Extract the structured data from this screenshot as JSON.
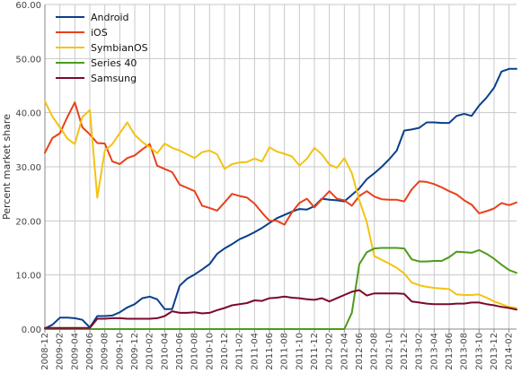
{
  "chart_data": {
    "type": "line",
    "title": "",
    "xlabel": "",
    "ylabel": "Percent market share",
    "ylim": [
      0,
      60
    ],
    "yticks": [
      "0.00",
      "10.00",
      "20.00",
      "30.00",
      "40.00",
      "50.00",
      "60.00"
    ],
    "grid": true,
    "legend_position": "top-left",
    "x_tick_labels": [
      "2008-12",
      "2009-02",
      "2009-04",
      "2009-06",
      "2009-08",
      "2009-10",
      "2009-12",
      "2010-02",
      "2010-04",
      "2010-06",
      "2010-08",
      "2010-10",
      "2010-12",
      "2011-02",
      "2011-04",
      "2011-06",
      "2011-08",
      "2011-10",
      "2011-12",
      "2012-02",
      "2012-04",
      "2012-06",
      "2012-08",
      "2012-10",
      "2012-12",
      "2013-02",
      "2013-04",
      "2013-06",
      "2013-08",
      "2013-10",
      "2013-12",
      "2014-02"
    ],
    "x": [
      "2008-12",
      "2009-01",
      "2009-02",
      "2009-03",
      "2009-04",
      "2009-05",
      "2009-06",
      "2009-07",
      "2009-08",
      "2009-09",
      "2009-10",
      "2009-11",
      "2009-12",
      "2010-01",
      "2010-02",
      "2010-03",
      "2010-04",
      "2010-05",
      "2010-06",
      "2010-07",
      "2010-08",
      "2010-09",
      "2010-10",
      "2010-11",
      "2010-12",
      "2011-01",
      "2011-02",
      "2011-03",
      "2011-04",
      "2011-05",
      "2011-06",
      "2011-07",
      "2011-08",
      "2011-09",
      "2011-10",
      "2011-11",
      "2011-12",
      "2012-01",
      "2012-02",
      "2012-03",
      "2012-04",
      "2012-05",
      "2012-06",
      "2012-07",
      "2012-08",
      "2012-09",
      "2012-10",
      "2012-11",
      "2012-12",
      "2013-01",
      "2013-02",
      "2013-03",
      "2013-04",
      "2013-05",
      "2013-06",
      "2013-07",
      "2013-08",
      "2013-09",
      "2013-10",
      "2013-11",
      "2013-12",
      "2014-01",
      "2014-02",
      "2014-03"
    ],
    "series": [
      {
        "name": "Android",
        "color": "#0b3f8c",
        "values": [
          0.1,
          0.8,
          2.1,
          2.1,
          2.0,
          1.7,
          0.3,
          2.4,
          2.4,
          2.5,
          3.1,
          4.0,
          4.6,
          5.7,
          6.0,
          5.5,
          3.7,
          3.7,
          8.0,
          9.3,
          10.1,
          11.0,
          12.0,
          13.9,
          14.9,
          15.7,
          16.6,
          17.2,
          17.9,
          18.7,
          19.6,
          20.5,
          21.1,
          21.7,
          22.2,
          22.1,
          22.7,
          24.1,
          23.9,
          23.8,
          23.6,
          24.8,
          26.0,
          27.7,
          28.8,
          30.0,
          31.4,
          33.0,
          36.7,
          36.9,
          37.2,
          38.2,
          38.2,
          38.1,
          38.1,
          39.4,
          39.8,
          39.4,
          41.3,
          42.8,
          44.6,
          47.6,
          48.1,
          48.1
        ],
        "label_key": "legend.android"
      },
      {
        "name": "iOS",
        "color": "#e8411b",
        "values": [
          32.6,
          35.3,
          36.2,
          39.2,
          41.9,
          37.3,
          36.0,
          34.4,
          34.3,
          31.0,
          30.5,
          31.6,
          32.1,
          33.2,
          34.2,
          30.2,
          29.6,
          29.0,
          26.7,
          26.1,
          25.5,
          22.8,
          22.4,
          21.9,
          23.4,
          25.0,
          24.6,
          24.3,
          23.2,
          21.5,
          20.0,
          20.0,
          19.3,
          21.6,
          23.3,
          24.1,
          22.5,
          24.0,
          25.5,
          24.1,
          23.8,
          22.8,
          24.6,
          25.5,
          24.5,
          24.0,
          23.9,
          23.9,
          23.6,
          25.8,
          27.3,
          27.2,
          26.8,
          26.2,
          25.5,
          24.9,
          23.8,
          23.0,
          21.4,
          21.8,
          22.3,
          23.3,
          22.9,
          23.4
        ],
        "label_key": "legend.ios"
      },
      {
        "name": "SymbianOS",
        "color": "#f3c313",
        "values": [
          42.1,
          39.3,
          37.3,
          35.2,
          34.2,
          39.2,
          40.5,
          24.3,
          33.0,
          34.2,
          36.2,
          38.2,
          35.9,
          34.6,
          33.6,
          32.5,
          34.3,
          33.5,
          33.0,
          32.3,
          31.6,
          32.7,
          33.0,
          32.3,
          29.6,
          30.5,
          30.8,
          30.9,
          31.5,
          31.0,
          33.6,
          32.8,
          32.4,
          31.9,
          30.2,
          31.5,
          33.5,
          32.3,
          30.4,
          29.8,
          31.6,
          28.8,
          23.8,
          19.8,
          13.5,
          12.8,
          12.1,
          11.3,
          10.3,
          8.6,
          8.1,
          7.8,
          7.6,
          7.5,
          7.4,
          6.4,
          6.3,
          6.3,
          6.4,
          5.8,
          5.1,
          4.6,
          4.1,
          3.9
        ],
        "label_key": "legend.symbian"
      },
      {
        "name": "Series 40",
        "color": "#4f9a1c",
        "values": [
          0,
          0,
          0,
          0,
          0,
          0,
          0,
          0,
          0,
          0,
          0,
          0,
          0,
          0,
          0,
          0,
          0,
          0,
          0,
          0,
          0,
          0,
          0,
          0,
          0,
          0,
          0,
          0,
          0,
          0,
          0,
          0,
          0,
          0,
          0,
          0,
          0,
          0,
          0,
          0,
          0,
          3.0,
          12.0,
          14.2,
          14.9,
          15.0,
          15.0,
          15.0,
          14.9,
          12.9,
          12.5,
          12.5,
          12.6,
          12.6,
          13.3,
          14.3,
          14.2,
          14.1,
          14.6,
          13.9,
          13.0,
          11.9,
          10.9,
          10.4
        ],
        "label_key": "legend.series40"
      },
      {
        "name": "Samsung",
        "color": "#7a0a2b",
        "values": [
          0.2,
          0.2,
          0.2,
          0.2,
          0.2,
          0.2,
          0.2,
          1.9,
          1.9,
          2.0,
          2.0,
          1.9,
          1.9,
          1.9,
          1.9,
          2.0,
          2.4,
          3.3,
          3.0,
          3.0,
          3.1,
          2.9,
          3.0,
          3.5,
          3.9,
          4.4,
          4.6,
          4.8,
          5.3,
          5.2,
          5.7,
          5.8,
          6.0,
          5.8,
          5.7,
          5.5,
          5.4,
          5.7,
          5.1,
          5.7,
          6.3,
          6.9,
          7.2,
          6.2,
          6.6,
          6.6,
          6.6,
          6.6,
          6.5,
          5.1,
          4.9,
          4.7,
          4.6,
          4.6,
          4.6,
          4.7,
          4.7,
          4.9,
          4.9,
          4.6,
          4.4,
          4.1,
          3.9,
          3.6
        ],
        "label_key": "legend.samsung"
      }
    ]
  },
  "legend": {
    "android": "Android",
    "ios": "iOS",
    "symbian": "SymbianOS",
    "series40": "Series 40",
    "samsung": "Samsung"
  }
}
